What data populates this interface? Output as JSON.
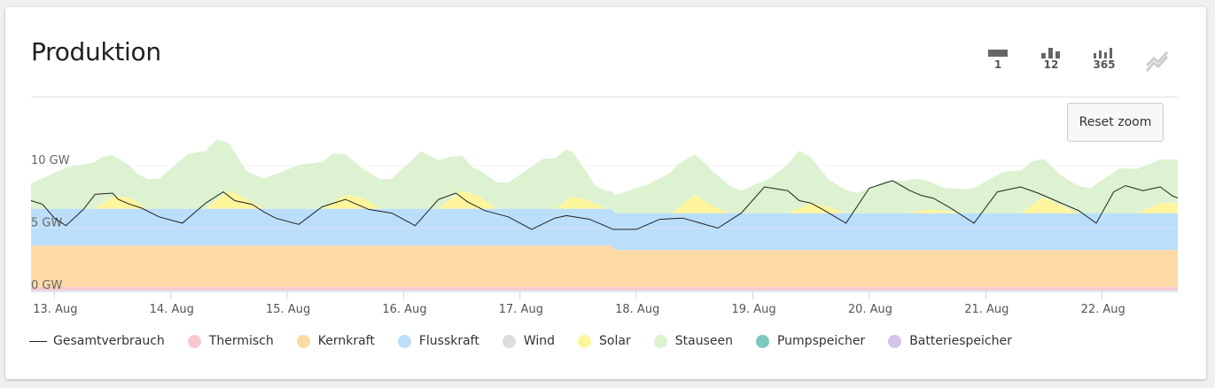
{
  "header": {
    "title": "Produktion"
  },
  "toolbar": {
    "buttons": [
      {
        "label": "1",
        "icon": "day-bar-icon"
      },
      {
        "label": "12",
        "icon": "month-bars-icon"
      },
      {
        "label": "365",
        "icon": "year-bars-icon"
      },
      {
        "label": "",
        "icon": "trend-chart-icon"
      }
    ]
  },
  "reset_zoom": "Reset zoom",
  "chart_data": {
    "type": "area",
    "title": "Produktion",
    "xlabel": "",
    "ylabel": "",
    "x_ticks": [
      "13. Aug",
      "14. Aug",
      "15. Aug",
      "16. Aug",
      "17. Aug",
      "18. Aug",
      "19. Aug",
      "20. Aug",
      "21. Aug",
      "22. Aug"
    ],
    "y_ticks": [
      "0 GW",
      "5 GW",
      "10 GW"
    ],
    "ylim": [
      0,
      14
    ],
    "xlim": [
      0,
      9.85
    ],
    "stacked": true,
    "grid": true,
    "legend_position": "bottom",
    "colors": {
      "Gesamtverbrauch": "#222222",
      "Thermisch": "#f9c9d0",
      "Kernkraft": "#fddaa6",
      "Flusskraft": "#bbdefb",
      "Wind": "#dddddd",
      "Solar": "#fff59d",
      "Stauseen": "#dcf2d0",
      "Pumpspeicher": "#7dc8c0",
      "Batteriespeicher": "#d3c4ea"
    },
    "series": [
      {
        "name": "Thermisch",
        "x": [
          0,
          9.85
        ],
        "values": [
          0.3,
          0.3
        ]
      },
      {
        "name": "Kernkraft",
        "x": [
          0,
          5.0,
          5.01,
          9.85
        ],
        "values": [
          3.3,
          3.3,
          2.95,
          2.95
        ]
      },
      {
        "name": "Flusskraft",
        "x": [
          0,
          9.85
        ],
        "values": [
          2.95,
          2.95
        ]
      },
      {
        "name": "Wind",
        "x": [
          0,
          9.85
        ],
        "values": [
          0,
          0
        ]
      },
      {
        "name": "Solar",
        "x": [
          0,
          0.55,
          0.7,
          0.85,
          1.0,
          1.5,
          1.7,
          1.85,
          2.0,
          2.5,
          2.7,
          2.85,
          3.0,
          3.5,
          3.7,
          3.85,
          4.0,
          4.5,
          4.65,
          4.8,
          4.95,
          5.0,
          5.5,
          5.7,
          5.85,
          6.0,
          6.5,
          6.7,
          6.85,
          7.0,
          7.5,
          7.7,
          7.85,
          8.0,
          8.5,
          8.7,
          8.85,
          9.0,
          9.5,
          9.7,
          9.85
        ],
        "values": [
          0,
          0,
          1.0,
          0.9,
          0,
          0,
          1.5,
          0.8,
          0,
          0,
          1.1,
          0.9,
          0,
          0,
          1.5,
          1.0,
          0,
          0,
          1.0,
          0.6,
          0,
          0,
          0,
          1.5,
          0.6,
          0,
          0,
          0.8,
          0.5,
          0,
          0,
          0.3,
          0.2,
          0,
          0,
          1.3,
          0.6,
          0,
          0,
          0.8,
          0.8
        ]
      },
      {
        "name": "Stauseen",
        "x": [
          0,
          0.3,
          0.6,
          0.9,
          1.1,
          1.35,
          1.6,
          1.85,
          2.0,
          2.3,
          2.6,
          2.85,
          3.1,
          3.35,
          3.6,
          3.8,
          4.1,
          4.4,
          4.6,
          4.85,
          5.0,
          5.3,
          5.55,
          5.8,
          6.1,
          6.35,
          6.6,
          6.85,
          7.1,
          7.35,
          7.6,
          7.85,
          8.1,
          8.35,
          8.6,
          8.85,
          9.1,
          9.35,
          9.6,
          9.85
        ],
        "values": [
          2.0,
          3.3,
          3.8,
          2.3,
          2.4,
          4.4,
          4.8,
          2.2,
          2.4,
          3.5,
          3.9,
          2.3,
          2.4,
          4.6,
          3.4,
          2.1,
          2.1,
          4.0,
          4.1,
          1.4,
          1.4,
          2.3,
          3.5,
          3.0,
          1.8,
          2.8,
          4.6,
          2.2,
          1.6,
          2.6,
          2.6,
          1.8,
          2.0,
          3.3,
          3.5,
          2.4,
          2.0,
          3.6,
          3.5,
          3.5
        ]
      },
      {
        "name": "Pumpspeicher",
        "x": [
          0,
          9.85
        ],
        "values": [
          0,
          0
        ]
      },
      {
        "name": "Batteriespeicher",
        "x": [
          0,
          9.85
        ],
        "values": [
          0,
          0
        ]
      },
      {
        "name": "Gesamtverbrauch",
        "type": "line",
        "x": [
          0,
          0.1,
          0.2,
          0.3,
          0.45,
          0.55,
          0.7,
          0.75,
          0.85,
          0.95,
          1.1,
          1.3,
          1.5,
          1.65,
          1.75,
          1.9,
          2.0,
          2.1,
          2.3,
          2.5,
          2.7,
          2.8,
          2.9,
          3.1,
          3.3,
          3.5,
          3.65,
          3.75,
          3.9,
          4.1,
          4.3,
          4.5,
          4.6,
          4.8,
          5.0,
          5.2,
          5.4,
          5.6,
          5.75,
          5.9,
          6.1,
          6.3,
          6.5,
          6.6,
          6.7,
          6.8,
          7.0,
          7.2,
          7.4,
          7.55,
          7.65,
          7.75,
          7.9,
          8.1,
          8.3,
          8.5,
          8.65,
          8.8,
          9.0,
          9.15,
          9.3,
          9.4,
          9.55,
          9.7,
          9.8,
          9.85
        ],
        "values": [
          7.2,
          6.9,
          5.8,
          5.2,
          6.5,
          7.7,
          7.8,
          7.3,
          6.9,
          6.6,
          5.9,
          5.4,
          7.0,
          7.9,
          7.2,
          6.9,
          6.3,
          5.8,
          5.3,
          6.7,
          7.3,
          6.9,
          6.5,
          6.2,
          5.2,
          7.3,
          7.8,
          7.1,
          6.4,
          5.9,
          4.9,
          5.8,
          6.0,
          5.7,
          4.9,
          4.9,
          5.7,
          5.8,
          5.4,
          5.0,
          6.2,
          8.3,
          8.0,
          7.2,
          7.0,
          6.5,
          5.4,
          8.2,
          8.8,
          8.0,
          7.6,
          7.4,
          6.6,
          5.4,
          7.9,
          8.3,
          7.8,
          7.2,
          6.4,
          5.4,
          7.9,
          8.4,
          8.0,
          8.3,
          7.6,
          7.4
        ]
      }
    ]
  },
  "legend": [
    {
      "label": "Gesamtverbrauch",
      "kind": "line"
    },
    {
      "label": "Thermisch",
      "color": "#f9c9d0"
    },
    {
      "label": "Kernkraft",
      "color": "#fddaa6"
    },
    {
      "label": "Flusskraft",
      "color": "#bbdefb"
    },
    {
      "label": "Wind",
      "color": "#dddddd"
    },
    {
      "label": "Solar",
      "color": "#fff59d"
    },
    {
      "label": "Stauseen",
      "color": "#dcf2d0"
    },
    {
      "label": "Pumpspeicher",
      "color": "#7dc8c0"
    },
    {
      "label": "Batteriespeicher",
      "color": "#d3c4ea"
    }
  ]
}
